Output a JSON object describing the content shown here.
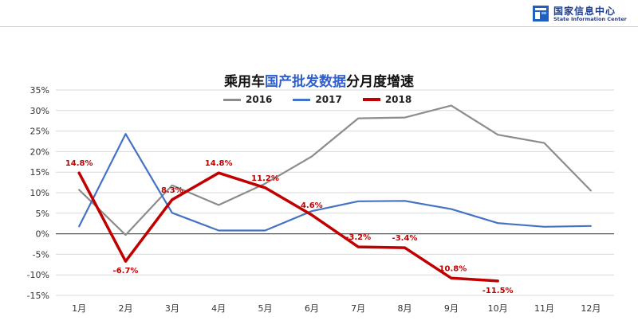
{
  "header": {
    "org_name_cn": "国家信息中心",
    "org_name_en": "State Information Center",
    "icon": "state-information-center-logo-icon"
  },
  "chart_data": {
    "type": "line",
    "title_parts": [
      {
        "text": "乘用车",
        "highlight": false
      },
      {
        "text": "国产批发数据",
        "highlight": true
      },
      {
        "text": "分月度增速",
        "highlight": false
      }
    ],
    "title_highlight_color": "#2f5fd0",
    "categories": [
      "1月",
      "2月",
      "3月",
      "4月",
      "5月",
      "6月",
      "7月",
      "8月",
      "9月",
      "10月",
      "11月",
      "12月"
    ],
    "y_tick_labels": [
      "35%",
      "30%",
      "25%",
      "20%",
      "15%",
      "10%",
      "5%",
      "0%",
      "-5%",
      "-10%",
      "-15%"
    ],
    "ylim": [
      -15,
      35
    ],
    "y_unit": "%",
    "grid": true,
    "legend_position": "top-center",
    "series": [
      {
        "name": "2016",
        "color": "#8c8c8c",
        "width": "normal",
        "values": [
          10.7,
          -0.3,
          11.8,
          7.0,
          12.2,
          18.8,
          28.1,
          28.3,
          31.2,
          24.1,
          22.1,
          10.5
        ]
      },
      {
        "name": "2017",
        "color": "#4472c4",
        "width": "normal",
        "values": [
          1.8,
          24.3,
          5.1,
          0.8,
          0.8,
          5.5,
          7.9,
          8.0,
          6.0,
          2.6,
          1.7,
          1.9
        ]
      },
      {
        "name": "2018",
        "color": "#c00000",
        "width": "bold",
        "values": [
          14.8,
          -6.7,
          8.3,
          14.8,
          11.2,
          4.6,
          -3.2,
          -3.4,
          -10.8,
          -11.5,
          null,
          null
        ],
        "data_labels": [
          "14.8%",
          "-6.7%",
          "8.3%",
          "14.8%",
          "11.2%",
          "4.6%",
          "-3.2%",
          "-3.4%",
          "-10.8%",
          "-11.5%"
        ]
      }
    ]
  }
}
